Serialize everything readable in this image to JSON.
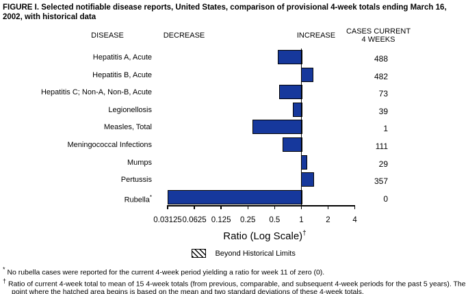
{
  "title": "FIGURE I. Selected notifiable disease reports, United States, comparison of provisional 4-week totals ending March 16, 2002, with historical data",
  "columns": {
    "disease": "DISEASE",
    "decrease": "DECREASE",
    "increase": "INCREASE",
    "cases_line1": "CASES CURRENT",
    "cases_line2": "4 WEEKS"
  },
  "chart_data": {
    "type": "bar",
    "orientation": "horizontal",
    "scale": "log2",
    "bar_color": "#16389C",
    "axis": {
      "label": "Ratio (Log Scale)",
      "label_superscript": "†",
      "ticks": [
        0.03125,
        0.0625,
        0.125,
        0.25,
        0.5,
        1,
        2,
        4
      ],
      "tick_labels": [
        "0.03125",
        "0.0625",
        "0.125",
        "0.25",
        "0.5",
        "1",
        "2",
        "4"
      ],
      "baseline": 1,
      "range": [
        0.03125,
        4
      ]
    },
    "series": [
      {
        "disease": "Hepatitis A, Acute",
        "label_sup": "",
        "ratio": 0.54,
        "cases": "488"
      },
      {
        "disease": "Hepatitis B, Acute",
        "label_sup": "",
        "ratio": 1.35,
        "cases": "482"
      },
      {
        "disease": "Hepatitis C; Non-A, Non-B, Acute",
        "label_sup": "",
        "ratio": 0.56,
        "cases": "73"
      },
      {
        "disease": "Legionellosis",
        "label_sup": "",
        "ratio": 0.8,
        "cases": "39"
      },
      {
        "disease": "Measles, Total",
        "label_sup": "",
        "ratio": 0.28,
        "cases": "1"
      },
      {
        "disease": "Meningococcal Infections",
        "label_sup": "",
        "ratio": 0.62,
        "cases": "111"
      },
      {
        "disease": "Mumps",
        "label_sup": "",
        "ratio": 1.15,
        "cases": "29"
      },
      {
        "disease": "Pertussis",
        "label_sup": "",
        "ratio": 1.38,
        "cases": "357"
      },
      {
        "disease": "Rubella",
        "label_sup": "*",
        "ratio": 0.03125,
        "cases": "0"
      }
    ],
    "legend": {
      "swatch": "hatched-diagonal",
      "label": "Beyond Historical Limits"
    }
  },
  "footnotes": [
    {
      "marker": "*",
      "text": "No rubella cases were reported for the current 4-week period yielding a ratio for week 11 of zero (0)."
    },
    {
      "marker": "†",
      "text": "Ratio of current 4-week total to mean of 15 4-week totals (from previous, comparable, and subsequent 4-week periods for the past 5 years). The point where the hatched area begins is based on the mean and two standard deviations of these 4-week totals."
    }
  ]
}
